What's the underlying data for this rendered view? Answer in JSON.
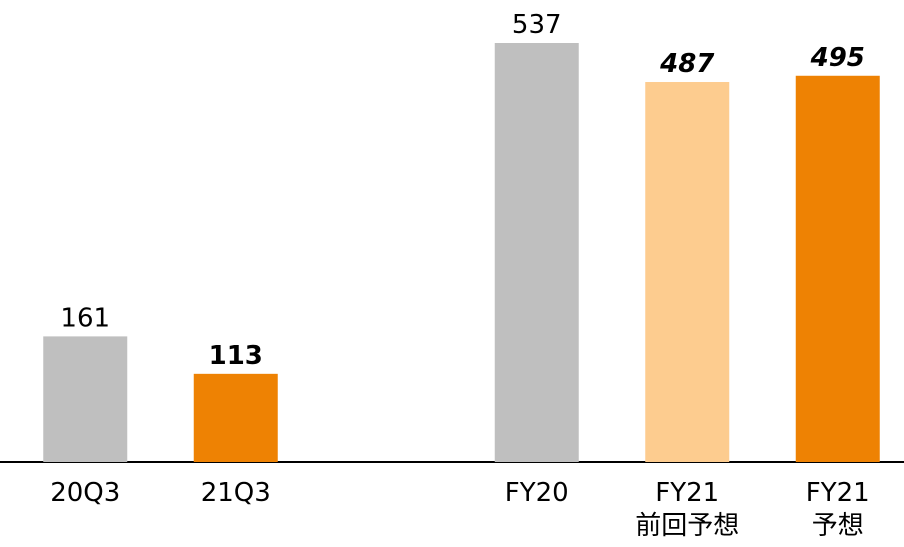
{
  "chart_data": {
    "type": "bar",
    "categories": [
      "20Q3",
      "21Q3",
      null,
      "FY20",
      "FY21\n前回予想",
      "FY21\n予想"
    ],
    "values": [
      161,
      113,
      null,
      537,
      487,
      495
    ],
    "colors": [
      "#bfbfbf",
      "#ee8203",
      null,
      "#bfbfbf",
      "#fdcc8f",
      "#ee8203"
    ],
    "ylim": [
      0,
      537
    ]
  }
}
